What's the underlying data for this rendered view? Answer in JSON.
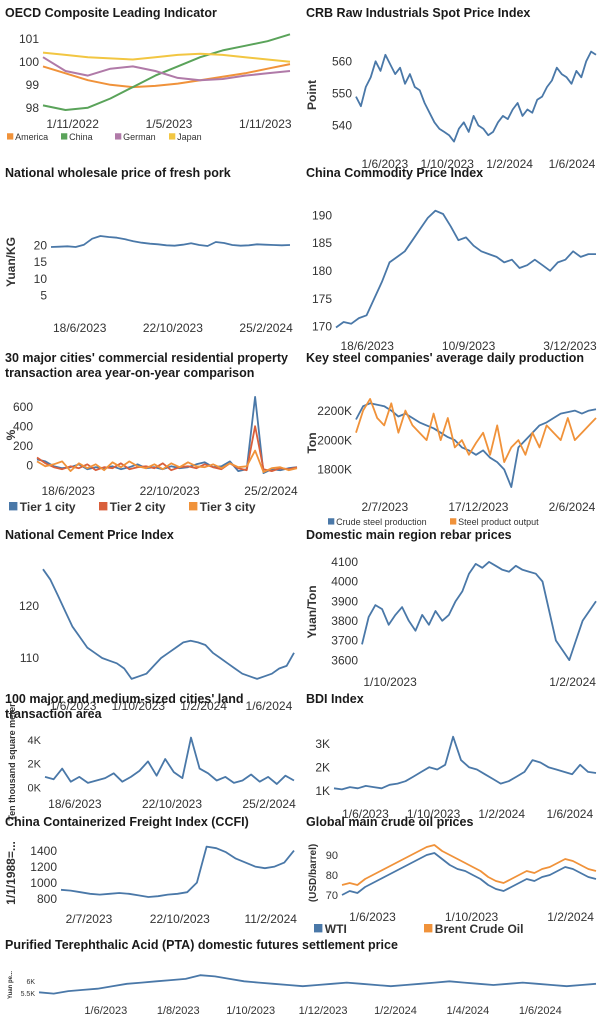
{
  "colors": {
    "blue": "#4a78a8",
    "orange": "#f0923a",
    "green": "#5aa35a",
    "mauve": "#b07aa8",
    "yellow": "#f2c642",
    "red": "#d95f3b"
  },
  "charts": [
    {
      "id": "oecd",
      "title": "OECD Composite Leading Indicator",
      "type": "line",
      "ylabel": "",
      "yticks": [
        98,
        99,
        100,
        101
      ],
      "ylim": [
        97.9,
        101.3
      ],
      "xticks": [
        "1/11/2022",
        "1/5/2023",
        "1/11/2023"
      ],
      "legend": [
        "America",
        "China",
        "German",
        "Japan"
      ],
      "series": [
        {
          "name": "America",
          "color": "#f0923a",
          "values": [
            99.8,
            99.5,
            99.2,
            99.0,
            98.9,
            98.95,
            99.05,
            99.2,
            99.35,
            99.5,
            99.7,
            99.9
          ]
        },
        {
          "name": "China",
          "color": "#5aa35a",
          "values": [
            98.1,
            97.9,
            98.0,
            98.4,
            98.9,
            99.4,
            99.8,
            100.2,
            100.5,
            100.7,
            100.9,
            101.2
          ]
        },
        {
          "name": "German",
          "color": "#b07aa8",
          "values": [
            100.2,
            99.6,
            99.4,
            99.7,
            99.8,
            99.6,
            99.3,
            99.2,
            99.25,
            99.4,
            99.5,
            99.6
          ]
        },
        {
          "name": "Japan",
          "color": "#f2c642",
          "values": [
            100.4,
            100.3,
            100.2,
            100.15,
            100.1,
            100.2,
            100.3,
            100.35,
            100.3,
            100.2,
            100.1,
            100.0
          ]
        }
      ]
    },
    {
      "id": "crb",
      "title": "CRB Raw Industrials Spot Price Index",
      "type": "line",
      "ylabel": "Point",
      "yticks": [
        540,
        550,
        560
      ],
      "ylim": [
        533,
        566
      ],
      "xticks": [
        "1/6/2023",
        "1/10/2023",
        "1/2/2024",
        "1/6/2024"
      ],
      "series": [
        {
          "name": "",
          "color": "#4a78a8",
          "values": [
            549,
            546,
            552,
            555,
            560,
            557,
            562,
            559,
            556,
            558,
            553,
            556,
            552,
            551,
            547,
            544,
            541,
            539,
            538,
            537,
            535,
            539,
            541,
            538,
            543,
            540,
            539,
            537,
            538,
            541,
            543,
            542,
            545,
            547,
            543,
            545,
            544,
            548,
            549,
            552,
            554,
            558,
            556,
            555,
            553,
            557,
            555,
            560,
            563,
            562
          ]
        }
      ]
    },
    {
      "id": "pork",
      "title": "National wholesale price of fresh pork",
      "type": "line",
      "ylabel": "Yuan/KG",
      "yticks": [
        5,
        10,
        15,
        20
      ],
      "ylim": [
        0,
        30
      ],
      "xticks": [
        "18/6/2023",
        "22/10/2023",
        "25/2/2024"
      ],
      "series": [
        {
          "name": "",
          "color": "#4a78a8",
          "values": [
            19.5,
            19.6,
            19.7,
            19.5,
            20.2,
            22.0,
            22.8,
            22.5,
            22.3,
            21.8,
            21.2,
            20.8,
            20.5,
            20.3,
            20.0,
            19.9,
            20.2,
            20.6,
            20.1,
            19.8,
            21.0,
            20.7,
            20.1,
            19.9,
            20.0,
            20.3,
            20.2,
            20.1,
            20.0,
            20.1
          ]
        }
      ]
    },
    {
      "id": "ccpi",
      "title": "China Commodity Price Index",
      "type": "line",
      "ylabel": "",
      "yticks": [
        170,
        175,
        180,
        185,
        190
      ],
      "ylim": [
        169,
        192
      ],
      "xticks": [
        "18/6/2023",
        "10/9/2023",
        "3/12/2023"
      ],
      "series": [
        {
          "name": "",
          "color": "#4a78a8",
          "values": [
            169.8,
            170.8,
            170.5,
            171.5,
            172.0,
            175.0,
            178.0,
            181.5,
            182.5,
            183.5,
            185.5,
            187.5,
            189.5,
            190.8,
            190.2,
            188.0,
            185.5,
            186.0,
            184.5,
            183.5,
            183.0,
            182.5,
            181.5,
            182.0,
            180.5,
            181.0,
            182.0,
            181.0,
            180.0,
            181.5,
            182.0,
            183.5,
            182.5,
            183.0,
            183.0
          ]
        }
      ]
    },
    {
      "id": "prop",
      "title": "30 major cities' commercial residential property transaction area year-on-year comparison",
      "type": "line",
      "ylabel": "%",
      "yticks": [
        0,
        200,
        400,
        600
      ],
      "ylim": [
        -120,
        740
      ],
      "xticks": [
        "18/6/2023",
        "22/10/2023",
        "25/2/2024"
      ],
      "legend": [
        "Tier 1 city",
        "Tier 2 city",
        "Tier 3 city"
      ],
      "series": [
        {
          "name": "Tier 1 city",
          "color": "#4a78a8",
          "values": [
            60,
            40,
            -10,
            -30,
            -20,
            10,
            -40,
            -20,
            -30,
            -10,
            -40,
            -20,
            10,
            -30,
            -20,
            -40,
            -10,
            -30,
            -20,
            10,
            30,
            -20,
            -10,
            40,
            -60,
            -40,
            700,
            -80,
            -40,
            -50,
            -30,
            -20
          ]
        },
        {
          "name": "Tier 2 city",
          "color": "#d95f3b",
          "values": [
            80,
            20,
            -20,
            -40,
            -10,
            -30,
            10,
            -50,
            -20,
            -30,
            20,
            -40,
            -20,
            -10,
            -30,
            20,
            -50,
            -20,
            -10,
            -30,
            10,
            -20,
            -40,
            20,
            -30,
            -50,
            400,
            -40,
            -60,
            -30,
            -40,
            -20
          ]
        },
        {
          "name": "Tier 3 city",
          "color": "#f0923a",
          "values": [
            40,
            -10,
            10,
            40,
            -60,
            20,
            -30,
            10,
            -50,
            30,
            -20,
            40,
            -10,
            -30,
            10,
            -40,
            20,
            -20,
            30,
            -10,
            -20,
            10,
            -30,
            20,
            -20,
            -10,
            150,
            -70,
            -30,
            -20,
            -50,
            -30
          ]
        }
      ]
    },
    {
      "id": "steel",
      "title": "Key steel companies' average daily production",
      "type": "line",
      "ylabel": "Ton",
      "yticks": [
        "1800K",
        "2000K",
        "2200K"
      ],
      "ytickvals": [
        1800,
        2000,
        2200
      ],
      "ylim": [
        1640,
        2320
      ],
      "xticks": [
        "2/7/2023",
        "17/12/2023",
        "2/6/2024"
      ],
      "legend": [
        "Crude steel production",
        "Steel product output"
      ],
      "series": [
        {
          "name": "Crude steel production",
          "color": "#4a78a8",
          "values": [
            2140,
            2230,
            2250,
            2240,
            2230,
            2200,
            2160,
            2180,
            2150,
            2120,
            2100,
            2080,
            2050,
            2020,
            2000,
            1950,
            1930,
            1900,
            1930,
            1880,
            1850,
            1800,
            1680,
            1950,
            2000,
            2050,
            2100,
            2120,
            2150,
            2180,
            2190,
            2200,
            2180,
            2200,
            2210
          ]
        },
        {
          "name": "Steel product output",
          "color": "#f0923a",
          "values": [
            2050,
            2200,
            2280,
            2150,
            2100,
            2250,
            2050,
            2200,
            2100,
            2050,
            2000,
            2180,
            2000,
            2150,
            1950,
            2000,
            1900,
            1980,
            2050,
            1900,
            2100,
            1850,
            1950,
            2000,
            1900,
            2050,
            1950,
            2100,
            2050,
            2000,
            2150,
            2000,
            2050,
            2100,
            2150
          ]
        }
      ]
    },
    {
      "id": "cement",
      "title": "National Cement Price Index",
      "type": "line",
      "ylabel": "",
      "yticks": [
        110,
        120
      ],
      "ylim": [
        103.5,
        128
      ],
      "xticks": [
        "1/6/2023",
        "1/10/2023",
        "1/2/2024",
        "1/6/2024"
      ],
      "series": [
        {
          "name": "",
          "color": "#4a78a8",
          "values": [
            127,
            125,
            122,
            119,
            116,
            114,
            112,
            111,
            110,
            109.5,
            109,
            108,
            106,
            106.5,
            107,
            108.5,
            110,
            111,
            112,
            113,
            113.3,
            113,
            112.5,
            111,
            110,
            109,
            108,
            107,
            106.5,
            106,
            106.5,
            107,
            108,
            108.5,
            111
          ]
        }
      ]
    },
    {
      "id": "rebar",
      "title": "Domestic main region rebar prices",
      "type": "line",
      "ylabel": "Yuan/Ton",
      "yticks": [
        3600,
        3700,
        3800,
        3900,
        4000,
        4100
      ],
      "ylim": [
        3560,
        4130
      ],
      "xticks": [
        "1/10/2023",
        "1/2/2024"
      ],
      "series": [
        {
          "name": "",
          "color": "#4a78a8",
          "values": [
            3680,
            3820,
            3880,
            3860,
            3780,
            3830,
            3870,
            3800,
            3750,
            3830,
            3780,
            3850,
            3800,
            3830,
            3900,
            3950,
            4040,
            4090,
            4070,
            4100,
            4080,
            4060,
            4050,
            4080,
            4060,
            4050,
            4040,
            4000,
            3850,
            3700,
            3650,
            3600,
            3700,
            3800,
            3850,
            3900
          ]
        }
      ]
    },
    {
      "id": "land",
      "title": "100 major and medium-sized cities' land transaction area",
      "type": "line",
      "ylabel": "Ten thousand square meter",
      "yticks": [
        "0K",
        "2K",
        "4K"
      ],
      "ytickvals": [
        0,
        2000,
        4000
      ],
      "ylim": [
        -200,
        4500
      ],
      "xticks": [
        "18/6/2023",
        "22/10/2023",
        "25/2/2024"
      ],
      "series": [
        {
          "name": "",
          "color": "#4a78a8",
          "values": [
            900,
            700,
            1600,
            500,
            900,
            400,
            600,
            800,
            1200,
            500,
            900,
            1400,
            2200,
            1000,
            2400,
            1300,
            800,
            4200,
            1600,
            1200,
            600,
            900,
            400,
            600,
            1100,
            500,
            900,
            300,
            1000,
            600
          ]
        }
      ]
    },
    {
      "id": "bdi",
      "title": "BDI Index",
      "type": "line",
      "ylabel": "",
      "yticks": [
        "1K",
        "2K",
        "3K"
      ],
      "ytickvals": [
        1000,
        2000,
        3000
      ],
      "ylim": [
        600,
        3500
      ],
      "xticks": [
        "1/6/2023",
        "1/10/2023",
        "1/2/2024",
        "1/6/2024"
      ],
      "series": [
        {
          "name": "",
          "color": "#4a78a8",
          "values": [
            1100,
            1050,
            1150,
            1100,
            1200,
            1150,
            1100,
            1250,
            1300,
            1400,
            1600,
            1800,
            2000,
            1900,
            2100,
            3300,
            2300,
            2000,
            1900,
            1700,
            1500,
            1300,
            1400,
            1600,
            1800,
            2300,
            2200,
            2000,
            1900,
            1800,
            1700,
            2100,
            1800,
            1750
          ]
        }
      ]
    },
    {
      "id": "ccfi",
      "title": "China Containerized Freight Index (CCFI)",
      "type": "line",
      "ylabel": "1/1/1988=...",
      "yticks": [
        800,
        1000,
        1200,
        1400
      ],
      "ylim": [
        720,
        1520
      ],
      "xticks": [
        "2/7/2023",
        "22/10/2023",
        "11/2/2024"
      ],
      "series": [
        {
          "name": "",
          "color": "#4a78a8",
          "values": [
            910,
            900,
            880,
            860,
            850,
            860,
            870,
            860,
            840,
            820,
            830,
            850,
            860,
            880,
            1000,
            1450,
            1430,
            1380,
            1300,
            1250,
            1200,
            1180,
            1200,
            1250,
            1400
          ]
        }
      ]
    },
    {
      "id": "crude",
      "title": "Global main crude oil prices",
      "type": "line",
      "ylabel": "(USD/barrel)",
      "yticks": [
        70,
        80,
        90
      ],
      "ylim": [
        65,
        97
      ],
      "xticks": [
        "1/6/2023",
        "1/10/2023",
        "1/2/2024"
      ],
      "legend": [
        "WTI",
        "Brent Crude Oil"
      ],
      "series": [
        {
          "name": "WTI",
          "color": "#4a78a8",
          "values": [
            70,
            72,
            71,
            74,
            76,
            78,
            80,
            82,
            84,
            86,
            88,
            90,
            91,
            88,
            85,
            83,
            82,
            80,
            78,
            75,
            73,
            72,
            74,
            76,
            78,
            77,
            79,
            80,
            82,
            84,
            83,
            81,
            79,
            78
          ]
        },
        {
          "name": "Brent Crude Oil",
          "color": "#f0923a",
          "values": [
            75,
            76,
            75,
            78,
            80,
            82,
            84,
            86,
            88,
            90,
            92,
            94,
            95,
            92,
            90,
            88,
            86,
            84,
            82,
            79,
            77,
            76,
            78,
            80,
            82,
            81,
            83,
            84,
            86,
            88,
            87,
            85,
            83,
            82
          ]
        }
      ]
    },
    {
      "id": "pta",
      "title": "Purified Terephthalic Acid (PTA) domestic futures settlement price",
      "type": "line",
      "ylabel": "Yuan pe...",
      "yticks": [
        "5.5K",
        "6K"
      ],
      "ytickvals": [
        5500,
        6000
      ],
      "ylim": [
        5400,
        6300
      ],
      "xticks": [
        "1/6/2023",
        "1/8/2023",
        "1/10/2023",
        "1/12/2023",
        "1/2/2024",
        "1/4/2024",
        "1/6/2024"
      ],
      "series": [
        {
          "name": "",
          "color": "#4a78a8",
          "values": [
            5550,
            5500,
            5600,
            5650,
            5700,
            5800,
            5900,
            5950,
            6000,
            6050,
            6100,
            6250,
            6200,
            6100,
            6000,
            5950,
            5900,
            5850,
            5800,
            5850,
            5900,
            5950,
            5900,
            5850,
            5800,
            5850,
            5900,
            5950,
            6000,
            5950,
            5900,
            5850,
            5900,
            5950,
            5900,
            5850,
            5800,
            5850,
            5900
          ]
        }
      ]
    }
  ]
}
